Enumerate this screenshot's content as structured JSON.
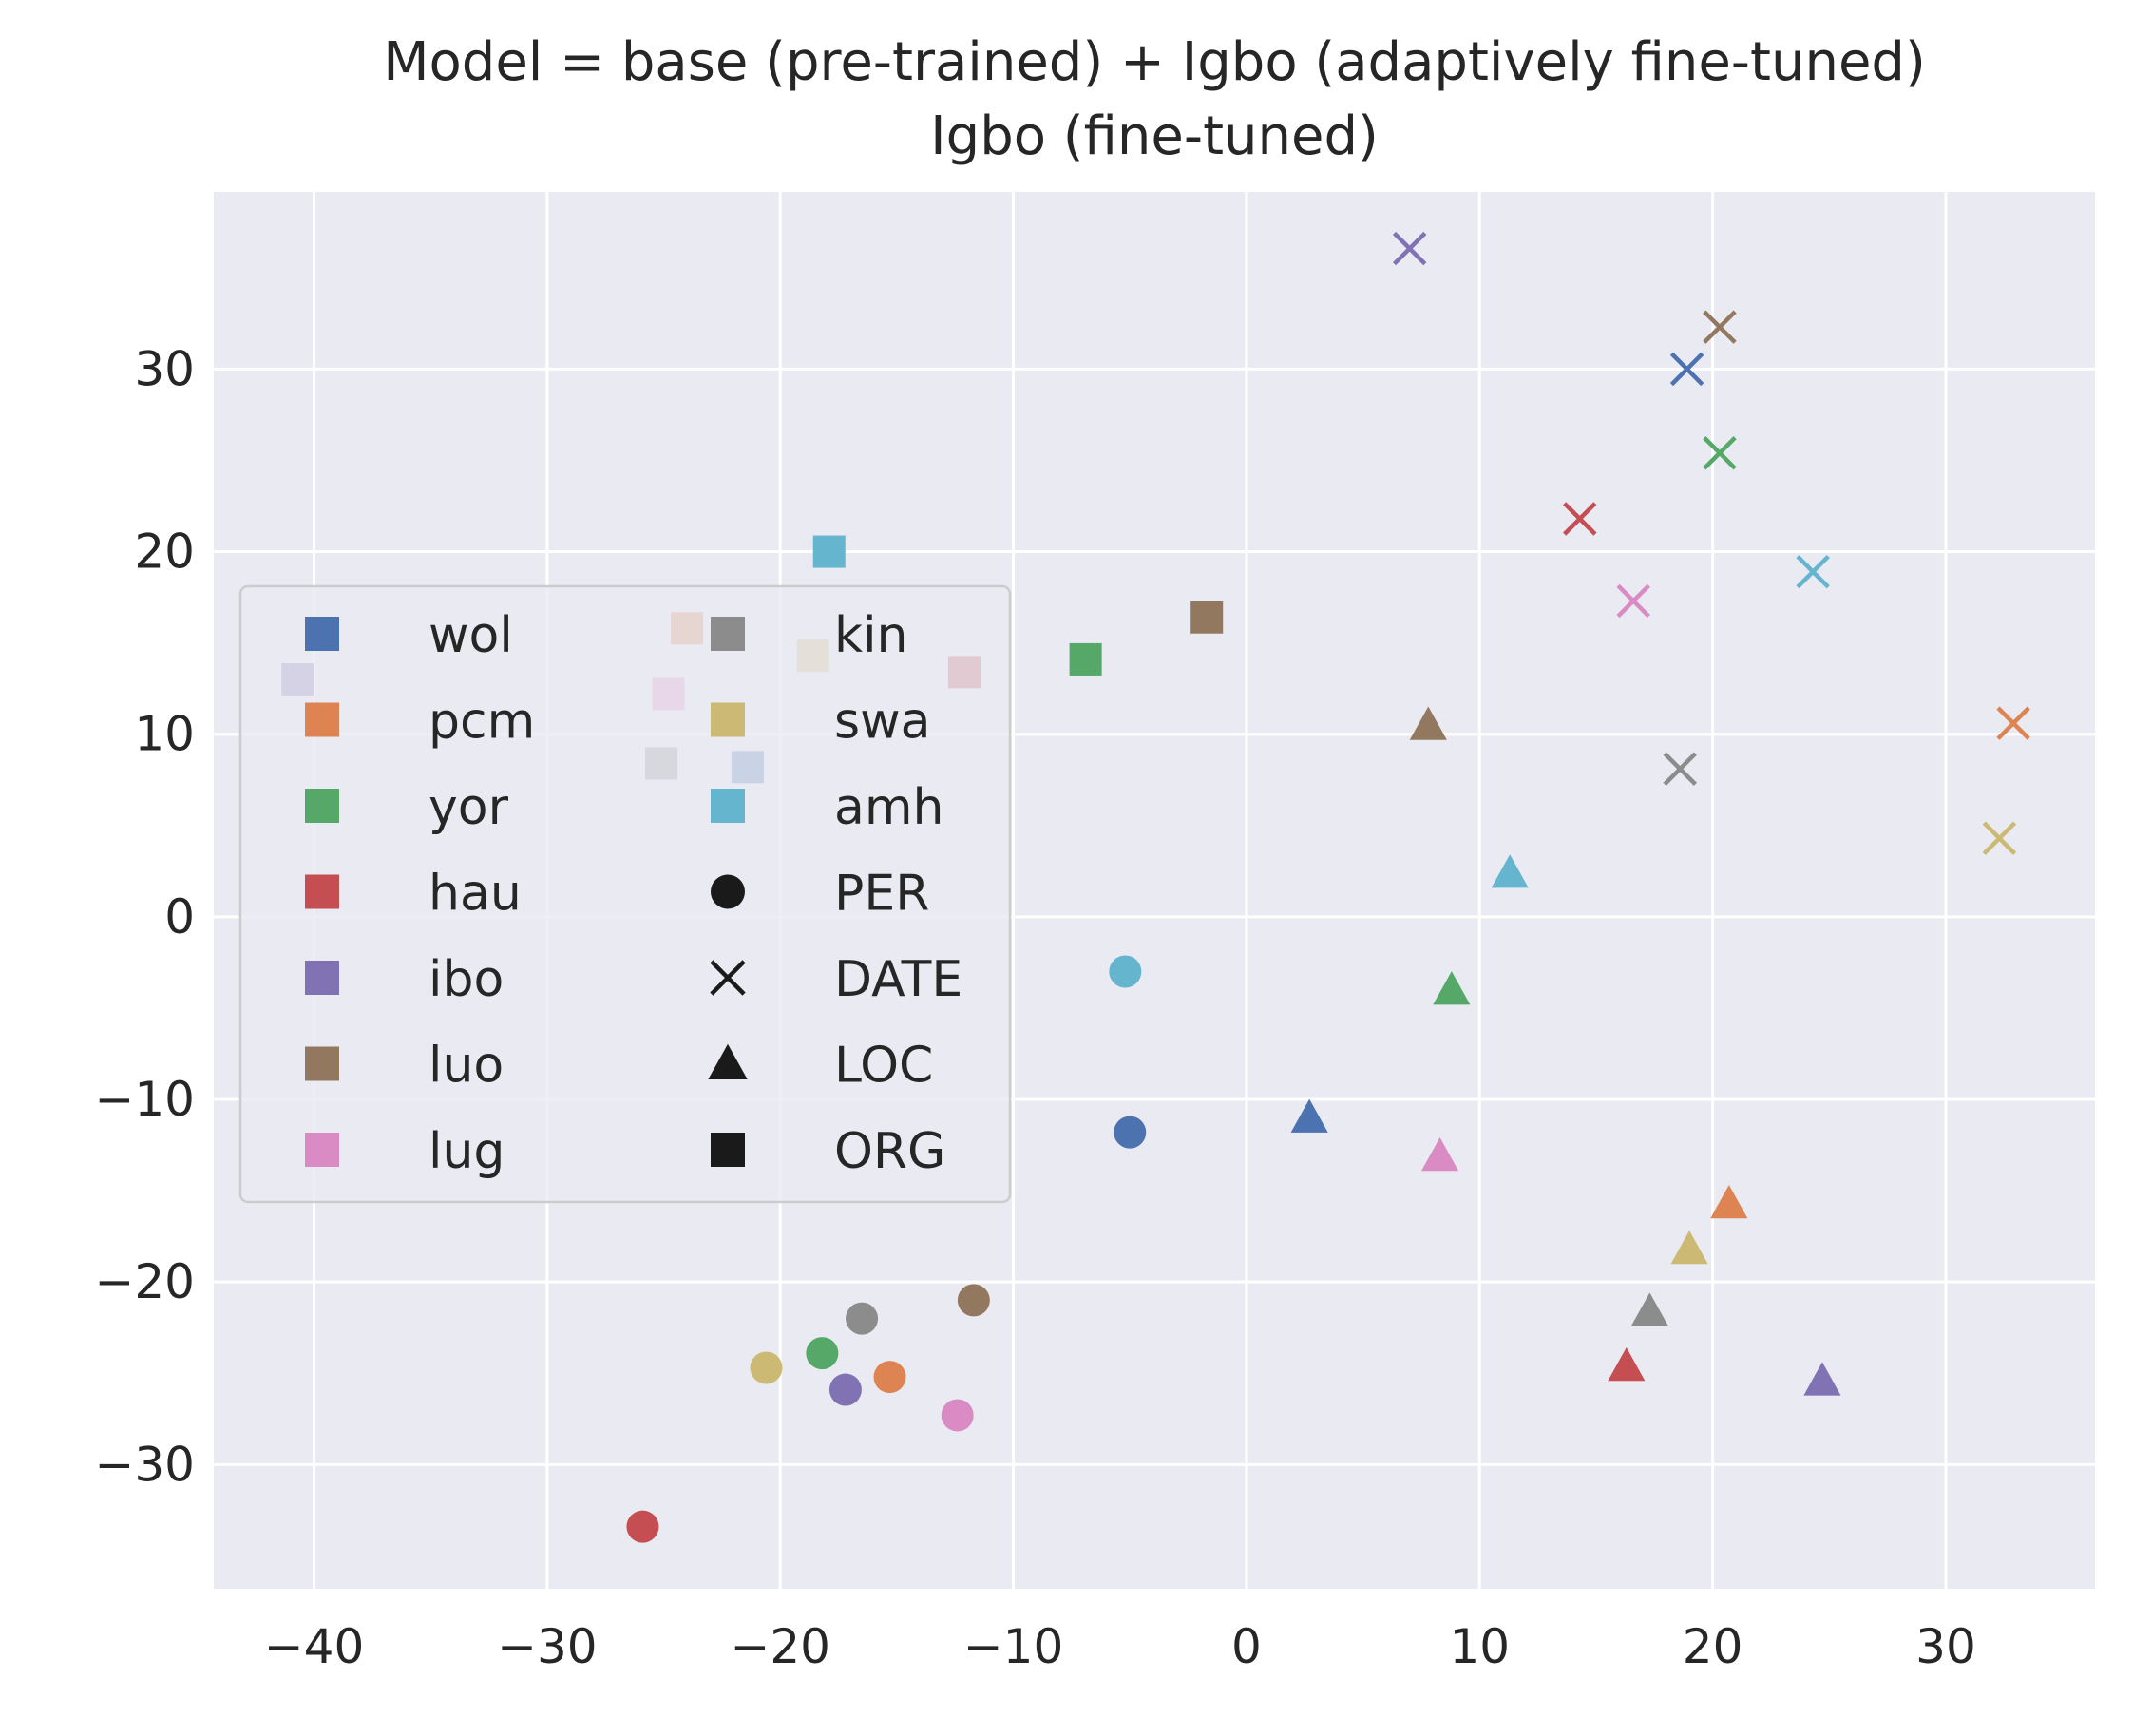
{
  "chart_data": {
    "type": "scatter",
    "title": "Model = base (pre-trained) + Igbo (adaptively fine-tuned)",
    "subtitle": "Igbo (fine-tuned)",
    "xlabel": "",
    "ylabel": "",
    "xlim": [
      -44.3,
      36.4
    ],
    "ylim": [
      -36.8,
      39.7
    ],
    "xticks": [
      -40,
      -30,
      -20,
      -10,
      0,
      10,
      20,
      30
    ],
    "yticks": [
      -30,
      -20,
      -10,
      0,
      10,
      20,
      30
    ],
    "grid": true,
    "legend_position": "center-left",
    "languages": [
      {
        "name": "wol",
        "color": "#4c72b0"
      },
      {
        "name": "pcm",
        "color": "#dd8452"
      },
      {
        "name": "yor",
        "color": "#55a868"
      },
      {
        "name": "hau",
        "color": "#c44e52"
      },
      {
        "name": "ibo",
        "color": "#8172b3"
      },
      {
        "name": "luo",
        "color": "#937860"
      },
      {
        "name": "lug",
        "color": "#da8bc3"
      },
      {
        "name": "kin",
        "color": "#8c8c8c"
      },
      {
        "name": "swa",
        "color": "#ccb974"
      },
      {
        "name": "amh",
        "color": "#64b5cd"
      }
    ],
    "entity_types": [
      {
        "name": "PER",
        "marker": "circle"
      },
      {
        "name": "DATE",
        "marker": "x"
      },
      {
        "name": "LOC",
        "marker": "triangle"
      },
      {
        "name": "ORG",
        "marker": "square"
      }
    ],
    "points": [
      {
        "lang": "wol",
        "type": "PER",
        "x": -5.0,
        "y": -11.8
      },
      {
        "lang": "pcm",
        "type": "PER",
        "x": -15.3,
        "y": -25.2
      },
      {
        "lang": "yor",
        "type": "PER",
        "x": -18.2,
        "y": -23.9
      },
      {
        "lang": "hau",
        "type": "PER",
        "x": -25.9,
        "y": -33.4
      },
      {
        "lang": "ibo",
        "type": "PER",
        "x": -17.2,
        "y": -25.9
      },
      {
        "lang": "luo",
        "type": "PER",
        "x": -11.7,
        "y": -21.0
      },
      {
        "lang": "lug",
        "type": "PER",
        "x": -12.4,
        "y": -27.3
      },
      {
        "lang": "kin",
        "type": "PER",
        "x": -16.5,
        "y": -22.0
      },
      {
        "lang": "swa",
        "type": "PER",
        "x": -20.6,
        "y": -24.7
      },
      {
        "lang": "amh",
        "type": "PER",
        "x": -5.2,
        "y": -3.0
      },
      {
        "lang": "wol",
        "type": "DATE",
        "x": 18.9,
        "y": 30.0
      },
      {
        "lang": "pcm",
        "type": "DATE",
        "x": 32.9,
        "y": 10.6
      },
      {
        "lang": "yor",
        "type": "DATE",
        "x": 20.3,
        "y": 25.4
      },
      {
        "lang": "hau",
        "type": "DATE",
        "x": 14.3,
        "y": 21.8
      },
      {
        "lang": "ibo",
        "type": "DATE",
        "x": 7.0,
        "y": 36.6
      },
      {
        "lang": "luo",
        "type": "DATE",
        "x": 20.3,
        "y": 32.3
      },
      {
        "lang": "lug",
        "type": "DATE",
        "x": 16.6,
        "y": 17.3
      },
      {
        "lang": "kin",
        "type": "DATE",
        "x": 18.6,
        "y": 8.1
      },
      {
        "lang": "swa",
        "type": "DATE",
        "x": 32.3,
        "y": 4.3
      },
      {
        "lang": "amh",
        "type": "DATE",
        "x": 24.3,
        "y": 18.9
      },
      {
        "lang": "wol",
        "type": "LOC",
        "x": 2.7,
        "y": -11.0
      },
      {
        "lang": "pcm",
        "type": "LOC",
        "x": 20.7,
        "y": -15.7
      },
      {
        "lang": "yor",
        "type": "LOC",
        "x": 8.8,
        "y": -4.0
      },
      {
        "lang": "hau",
        "type": "LOC",
        "x": 16.3,
        "y": -24.6
      },
      {
        "lang": "ibo",
        "type": "LOC",
        "x": 24.7,
        "y": -25.4
      },
      {
        "lang": "luo",
        "type": "LOC",
        "x": 7.8,
        "y": 10.5
      },
      {
        "lang": "lug",
        "type": "LOC",
        "x": 8.3,
        "y": -13.1
      },
      {
        "lang": "kin",
        "type": "LOC",
        "x": 17.3,
        "y": -21.6
      },
      {
        "lang": "swa",
        "type": "LOC",
        "x": 19.0,
        "y": -18.2
      },
      {
        "lang": "amh",
        "type": "LOC",
        "x": 11.3,
        "y": 2.4
      },
      {
        "lang": "wol",
        "type": "ORG",
        "x": -21.4,
        "y": 8.2
      },
      {
        "lang": "pcm",
        "type": "ORG",
        "x": -24.0,
        "y": 15.8
      },
      {
        "lang": "yor",
        "type": "ORG",
        "x": -6.9,
        "y": 14.1
      },
      {
        "lang": "hau",
        "type": "ORG",
        "x": -12.1,
        "y": 13.4
      },
      {
        "lang": "ibo",
        "type": "ORG",
        "x": -40.7,
        "y": 13.0
      },
      {
        "lang": "luo",
        "type": "ORG",
        "x": -1.7,
        "y": 16.4
      },
      {
        "lang": "lug",
        "type": "ORG",
        "x": -24.8,
        "y": 12.2
      },
      {
        "lang": "kin",
        "type": "ORG",
        "x": -25.1,
        "y": 8.4
      },
      {
        "lang": "swa",
        "type": "ORG",
        "x": -18.6,
        "y": 14.3
      },
      {
        "lang": "amh",
        "type": "ORG",
        "x": -17.9,
        "y": 20.0
      }
    ]
  },
  "legend": {
    "languages": [
      "wol",
      "pcm",
      "yor",
      "hau",
      "ibo",
      "luo",
      "lug",
      "kin",
      "swa",
      "amh"
    ],
    "entity_types": [
      "PER",
      "DATE",
      "LOC",
      "ORG"
    ]
  }
}
